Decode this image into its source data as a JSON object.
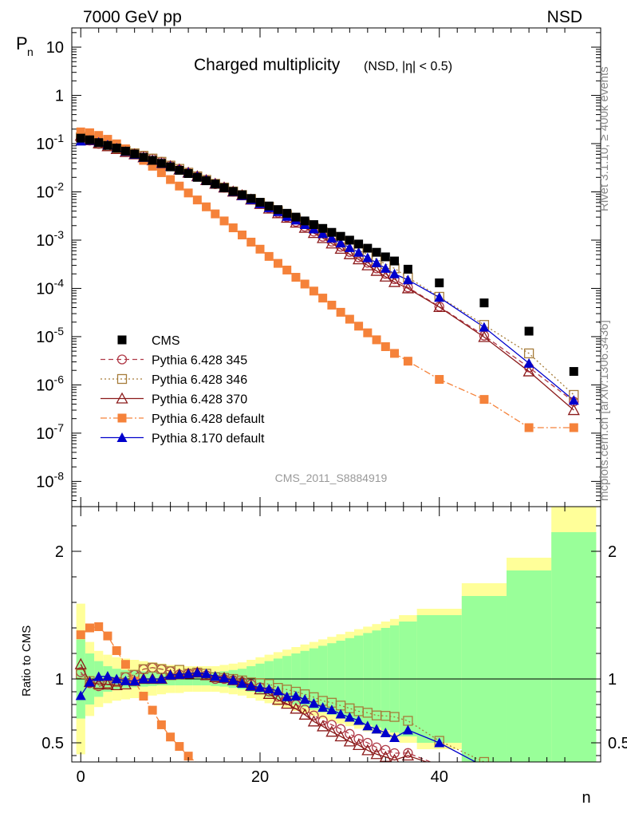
{
  "header": {
    "left_title": "7000 GeV pp",
    "right_title": "NSD"
  },
  "chart_data": [
    {
      "type": "scatter",
      "title": "Charged multiplicity",
      "subtitle": "(NSD, |η| < 0.5)",
      "ylabel": "P",
      "ylabel_sub": "n",
      "yscale": "log",
      "ylim": [
        3e-09,
        25
      ],
      "xlim": [
        -1,
        58
      ],
      "y_tick_labels": [
        "10",
        "1",
        "10^-1",
        "10^-2",
        "10^-3",
        "10^-4",
        "10^-5",
        "10^-6",
        "10^-7",
        "10^-8"
      ],
      "side_labels": [
        "Rivet 3.1.10, ≥ 400k events",
        "mcplots.cern.ch [arXiv:1306.3436]"
      ],
      "analysis_label": "CMS_2011_S8884919",
      "legend_position": "left-middle",
      "series": [
        {
          "name": "CMS",
          "color": "#000000",
          "marker": "filled-square",
          "x": [
            0,
            1,
            2,
            3,
            4,
            5,
            6,
            7,
            8,
            9,
            10,
            11,
            12,
            13,
            14,
            15,
            16,
            17,
            18,
            19,
            20,
            21,
            22,
            23,
            24,
            25,
            26,
            27,
            28,
            29,
            30,
            31,
            32,
            33,
            34,
            35,
            36.5,
            40,
            45,
            50,
            55
          ],
          "y": [
            0.13,
            0.12,
            0.105,
            0.092,
            0.081,
            0.07,
            0.061,
            0.052,
            0.045,
            0.039,
            0.033,
            0.028,
            0.024,
            0.02,
            0.017,
            0.0145,
            0.0122,
            0.0102,
            0.0087,
            0.0073,
            0.0061,
            0.0051,
            0.0043,
            0.0036,
            0.003,
            0.0025,
            0.0021,
            0.00175,
            0.00145,
            0.0012,
            0.001,
            0.00083,
            0.00068,
            0.00056,
            0.00045,
            0.00037,
            0.00025,
            0.00013,
            5e-05,
            1.3e-05,
            1.9e-06
          ]
        },
        {
          "name": "Pythia 6.428 345",
          "color": "#b03a48",
          "marker": "open-circle",
          "line": "dashed",
          "x": [
            0,
            1,
            2,
            3,
            4,
            5,
            6,
            7,
            8,
            9,
            10,
            11,
            12,
            13,
            14,
            15,
            16,
            17,
            18,
            19,
            20,
            21,
            22,
            23,
            24,
            25,
            26,
            27,
            28,
            29,
            30,
            31,
            32,
            33,
            34,
            35,
            36.5,
            40,
            45,
            50,
            55
          ],
          "y": [
            0.137,
            0.116,
            0.099,
            0.088,
            0.079,
            0.071,
            0.063,
            0.056,
            0.049,
            0.042,
            0.035,
            0.029,
            0.025,
            0.021,
            0.0175,
            0.0145,
            0.0122,
            0.0101,
            0.0085,
            0.007,
            0.0057,
            0.0046,
            0.0037,
            0.003,
            0.0024,
            0.0019,
            0.0015,
            0.00118,
            0.00093,
            0.00073,
            0.00057,
            0.00044,
            0.00034,
            0.00026,
            0.0002,
            0.000155,
            0.000105,
            4.2e-05,
            1.05e-05,
            2.3e-06,
            4.5e-07
          ]
        },
        {
          "name": "Pythia 6.428 346",
          "color": "#a67c3a",
          "marker": "open-square",
          "line": "dotted",
          "x": [
            0,
            1,
            2,
            3,
            4,
            5,
            6,
            7,
            8,
            9,
            10,
            11,
            12,
            13,
            14,
            15,
            16,
            17,
            18,
            19,
            20,
            21,
            22,
            23,
            24,
            25,
            26,
            27,
            28,
            29,
            30,
            31,
            32,
            33,
            34,
            35,
            36.5,
            40,
            45,
            50,
            55
          ],
          "y": [
            0.135,
            0.118,
            0.1,
            0.089,
            0.079,
            0.071,
            0.063,
            0.056,
            0.049,
            0.042,
            0.035,
            0.03,
            0.025,
            0.021,
            0.0177,
            0.0147,
            0.0123,
            0.0102,
            0.0086,
            0.0071,
            0.0059,
            0.0049,
            0.004,
            0.0033,
            0.0027,
            0.0022,
            0.0018,
            0.00145,
            0.00118,
            0.00095,
            0.00077,
            0.00062,
            0.0005,
            0.0004,
            0.00032,
            0.00026,
            0.000168,
            6.7e-05,
            1.75e-05,
            4.5e-06,
            6.2e-07
          ]
        },
        {
          "name": "Pythia 6.428 370",
          "color": "#8b1a1a",
          "marker": "open-triangle",
          "line": "solid",
          "x": [
            0,
            1,
            2,
            3,
            4,
            5,
            6,
            7,
            8,
            9,
            10,
            11,
            12,
            13,
            14,
            15,
            16,
            17,
            18,
            19,
            20,
            21,
            22,
            23,
            24,
            25,
            26,
            27,
            28,
            29,
            30,
            31,
            32,
            33,
            34,
            35,
            36.5,
            40,
            45,
            50,
            55
          ],
          "y": [
            0.145,
            0.117,
            0.101,
            0.088,
            0.077,
            0.067,
            0.06,
            0.052,
            0.045,
            0.039,
            0.034,
            0.029,
            0.025,
            0.021,
            0.0175,
            0.0147,
            0.0123,
            0.0101,
            0.0085,
            0.0069,
            0.0056,
            0.0045,
            0.0036,
            0.0029,
            0.0023,
            0.0018,
            0.0014,
            0.0011,
            0.00085,
            0.00066,
            0.00051,
            0.0004,
            0.0003,
            0.00023,
            0.000175,
            0.000135,
            0.0001,
            4.1e-05,
            9.8e-06,
            1.9e-06,
            3e-07
          ]
        },
        {
          "name": "Pythia 6.428 default",
          "color": "#f5823a",
          "marker": "filled-square",
          "line": "dashdot",
          "x": [
            0,
            1,
            2,
            3,
            4,
            5,
            6,
            7,
            8,
            9,
            10,
            11,
            12,
            13,
            14,
            15,
            16,
            17,
            18,
            19,
            20,
            21,
            22,
            23,
            24,
            25,
            26,
            27,
            28,
            29,
            30,
            31,
            32,
            33,
            34,
            35,
            36.5,
            40,
            45,
            50,
            55
          ],
          "y": [
            0.175,
            0.168,
            0.148,
            0.123,
            0.099,
            0.078,
            0.06,
            0.045,
            0.034,
            0.025,
            0.018,
            0.0132,
            0.0095,
            0.0068,
            0.0049,
            0.0035,
            0.0025,
            0.0018,
            0.00128,
            0.00091,
            0.00065,
            0.00046,
            0.00033,
            0.00024,
            0.00017,
            0.000123,
            8.8e-05,
            6.3e-05,
            4.5e-05,
            3.2e-05,
            2.3e-05,
            1.65e-05,
            1.2e-05,
            8.6e-06,
            6.2e-06,
            4.5e-06,
            3.1e-06,
            1.3e-06,
            5e-07,
            1.3e-07,
            1.3e-07
          ]
        },
        {
          "name": "Pythia 8.170 default",
          "color": "#0000cc",
          "marker": "filled-triangle",
          "line": "solid",
          "x": [
            0,
            1,
            2,
            3,
            4,
            5,
            6,
            7,
            8,
            9,
            10,
            11,
            12,
            13,
            14,
            15,
            16,
            17,
            18,
            19,
            20,
            21,
            22,
            23,
            24,
            25,
            26,
            27,
            28,
            29,
            30,
            31,
            32,
            33,
            34,
            35,
            36.5,
            40,
            45,
            50,
            55
          ],
          "y": [
            0.113,
            0.117,
            0.107,
            0.094,
            0.081,
            0.069,
            0.06,
            0.052,
            0.045,
            0.039,
            0.034,
            0.029,
            0.025,
            0.021,
            0.0177,
            0.0148,
            0.0123,
            0.0101,
            0.0084,
            0.0069,
            0.0057,
            0.0047,
            0.0039,
            0.0031,
            0.0026,
            0.0021,
            0.0017,
            0.00136,
            0.0011,
            0.00087,
            0.0007,
            0.00056,
            0.00043,
            0.00034,
            0.00026,
            0.0002,
            0.00015,
            6.5e-05,
            1.57e-05,
            2.8e-06,
            4.8e-07
          ]
        }
      ]
    },
    {
      "type": "scatter",
      "ylabel": "Ratio to CMS",
      "xlabel": "n",
      "xlim": [
        -1,
        58
      ],
      "ylim": [
        0.35,
        2.35
      ],
      "y_tick_labels": [
        "0.5",
        "1",
        "2"
      ],
      "x_tick_labels": [
        "0",
        "20",
        "40"
      ],
      "uncertainty_band": {
        "outer_color": "#ffff99",
        "inner_color": "#99ff99",
        "x_edges": [
          -0.5,
          0.5,
          1.5,
          2.5,
          3.5,
          4.5,
          5.5,
          6.5,
          7.5,
          8.5,
          9.5,
          10.5,
          11.5,
          12.5,
          13.5,
          14.5,
          15.5,
          16.5,
          17.5,
          18.5,
          19.5,
          20.5,
          21.5,
          22.5,
          23.5,
          24.5,
          25.5,
          26.5,
          27.5,
          28.5,
          29.5,
          30.5,
          31.5,
          32.5,
          33.5,
          34.5,
          35.5,
          37.5,
          42.5,
          47.5,
          52.5,
          57.5
        ],
        "outer": [
          0.59,
          0.29,
          0.22,
          0.19,
          0.17,
          0.16,
          0.15,
          0.14,
          0.13,
          0.12,
          0.11,
          0.11,
          0.1,
          0.1,
          0.1,
          0.1,
          0.11,
          0.12,
          0.13,
          0.15,
          0.17,
          0.19,
          0.21,
          0.23,
          0.25,
          0.27,
          0.29,
          0.31,
          0.33,
          0.35,
          0.37,
          0.39,
          0.41,
          0.43,
          0.45,
          0.47,
          0.5,
          0.55,
          0.75,
          0.95,
          1.35
        ],
        "inner": [
          0.31,
          0.2,
          0.14,
          0.1,
          0.08,
          0.07,
          0.065,
          0.06,
          0.055,
          0.05,
          0.05,
          0.05,
          0.05,
          0.05,
          0.05,
          0.055,
          0.06,
          0.07,
          0.08,
          0.1,
          0.12,
          0.14,
          0.16,
          0.18,
          0.2,
          0.22,
          0.24,
          0.26,
          0.28,
          0.3,
          0.32,
          0.34,
          0.36,
          0.38,
          0.4,
          0.42,
          0.45,
          0.5,
          0.65,
          0.85,
          1.15
        ]
      },
      "reference_line": 1
    }
  ]
}
